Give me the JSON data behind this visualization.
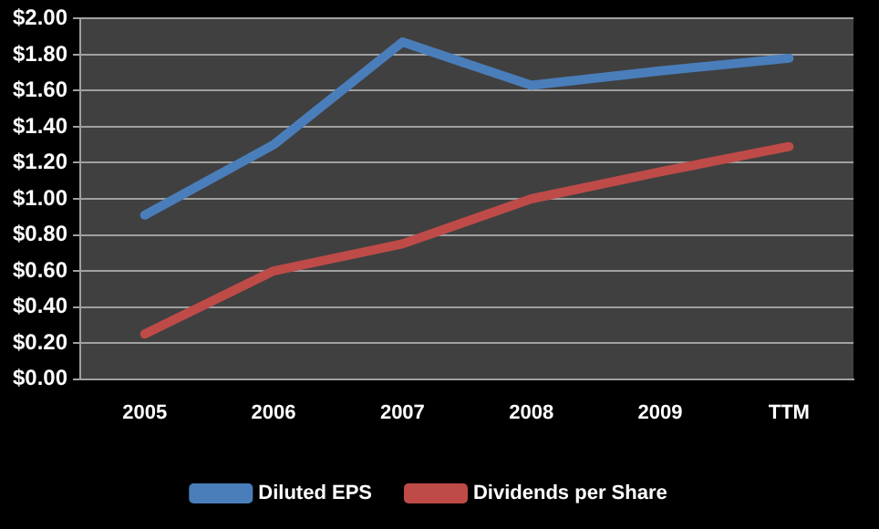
{
  "chart_data": {
    "type": "line",
    "categories": [
      "2005",
      "2006",
      "2007",
      "2008",
      "2009",
      "TTM"
    ],
    "series": [
      {
        "name": "Diluted EPS",
        "color": "#4a7ebb",
        "values": [
          0.91,
          1.3,
          1.87,
          1.63,
          1.71,
          1.78
        ]
      },
      {
        "name": "Dividends per Share",
        "color": "#be4b48",
        "values": [
          0.25,
          0.6,
          0.75,
          1.0,
          1.15,
          1.29
        ]
      }
    ],
    "ylim": [
      0,
      2
    ],
    "yticks": [
      {
        "value": 0,
        "label": "$0.00"
      },
      {
        "value": 0.2,
        "label": "$0.20"
      },
      {
        "value": 0.4,
        "label": "$0.40"
      },
      {
        "value": 0.6,
        "label": "$0.60"
      },
      {
        "value": 0.8,
        "label": "$0.80"
      },
      {
        "value": 1,
        "label": "$1.00"
      },
      {
        "value": 1.2,
        "label": "$1.20"
      },
      {
        "value": 1.4,
        "label": "$1.40"
      },
      {
        "value": 1.6,
        "label": "$1.60"
      },
      {
        "value": 1.8,
        "label": "$1.80"
      },
      {
        "value": 2,
        "label": "$2.00"
      }
    ],
    "grid": "y",
    "legend": "bottom",
    "marker": "none",
    "line_style": "solid"
  }
}
